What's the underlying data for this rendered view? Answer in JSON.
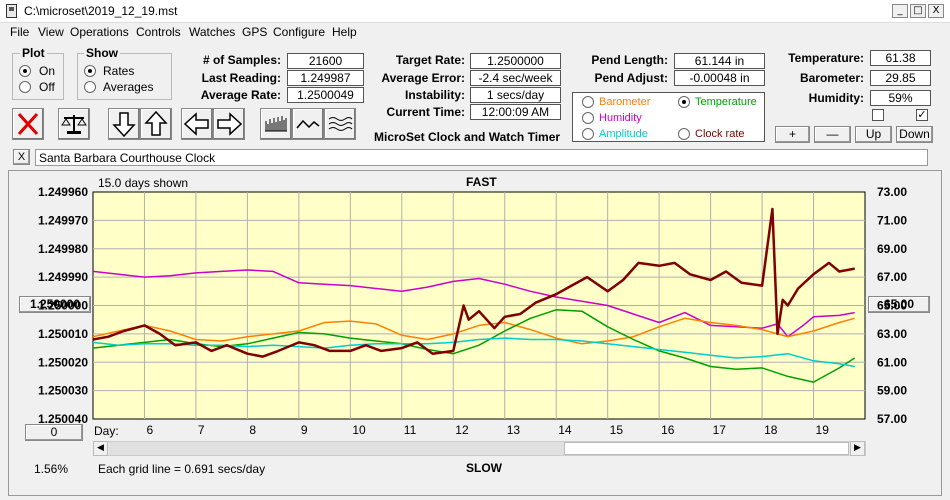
{
  "window": {
    "title": "C:\\microset\\2019_12_19.mst",
    "min": "_",
    "max": "□",
    "close": "X"
  },
  "menu": [
    "File",
    "View",
    "Operations",
    "Controls",
    "Watches",
    "GPS",
    "Configure",
    "Help"
  ],
  "plot_group": {
    "label": "Plot",
    "options": [
      "On",
      "Off"
    ],
    "selected": 0
  },
  "show_group": {
    "label": "Show",
    "options": [
      "Rates",
      "Averages"
    ],
    "selected": 0
  },
  "stats": {
    "samples_label": "# of Samples:",
    "samples": "21600",
    "last_reading_label": "Last Reading:",
    "last_reading": "1.249987",
    "average_rate_label": "Average Rate:",
    "average_rate": "1.2500049"
  },
  "target": {
    "target_rate_label": "Target Rate:",
    "target_rate": "1.2500000",
    "average_error_label": "Average Error:",
    "average_error": "-2.4 sec/week",
    "instability_label": "Instability:",
    "instability": "1 secs/day",
    "current_time_label": "Current Time:",
    "current_time": "12:00:09 AM",
    "app_name": "MicroSet Clock and Watch Timer"
  },
  "pend": {
    "length_label": "Pend Length:",
    "length": "61.144 in",
    "adjust_label": "Pend Adjust:",
    "adjust": "-0.00048 in"
  },
  "environment": {
    "temperature_label": "Temperature:",
    "temperature": "61.38",
    "barometer_label": "Barometer:",
    "barometer": "29.85",
    "humidity_label": "Humidity:",
    "humidity": "59%",
    "checkbox1_checked": false,
    "checkbox2_checked": true,
    "checkbox2_mark": "✓"
  },
  "legend": {
    "items": [
      {
        "label": "Barometer",
        "color": "#ff8000",
        "selected": false
      },
      {
        "label": "Temperature",
        "color": "#00a000",
        "selected": true
      },
      {
        "label": "Humidity",
        "color": "#cc00cc",
        "selected": false
      },
      {
        "label": "Amplitude",
        "color": "#00cccc",
        "selected": false
      },
      {
        "label": "Clock rate",
        "color": "#800000",
        "selected": false
      }
    ]
  },
  "scale_buttons": {
    "plus": "+",
    "minus": "—",
    "up": "Up",
    "down": "Down"
  },
  "toolbar": {
    "close_x": "X"
  },
  "description": "Santa Barbara Courthouse Clock",
  "chart_data": {
    "type": "line",
    "days_shown": "15.0 days shown",
    "top_label": "FAST",
    "bottom_label": "SLOW",
    "grid_note": "Each grid line = 0.691 secs/day",
    "percent": "1.56%",
    "left_button": "1.250000",
    "right_button": "65.00",
    "zero_button": "0",
    "x_label": "Day:",
    "x_ticks": [
      6,
      7,
      8,
      9,
      10,
      11,
      12,
      13,
      14,
      15,
      16,
      17,
      18,
      19
    ],
    "x_tick_labels": [
      "6",
      "7",
      "8",
      "9",
      "10",
      "11",
      "12",
      "13",
      "14",
      "15",
      "16",
      "17",
      "18",
      "19"
    ],
    "xlim": [
      5,
      20
    ],
    "left_ticks": [
      "1.249960",
      "1.249970",
      "1.249980",
      "1.249990",
      "1.250000",
      "1.250010",
      "1.250020",
      "1.250030",
      "1.250040"
    ],
    "left_ylim": [
      1.24996,
      1.25004
    ],
    "right_ticks": [
      "73.00",
      "71.00",
      "69.00",
      "67.00",
      "65.00",
      "63.00",
      "61.00",
      "59.00",
      "57.00"
    ],
    "right_ylim": [
      57,
      73
    ],
    "series": [
      {
        "name": "Humidity",
        "color": "#cc00cc",
        "axis": "right",
        "x": [
          5,
          5.5,
          6,
          6.5,
          7,
          7.5,
          8,
          8.5,
          9,
          9.5,
          10,
          10.5,
          11,
          11.5,
          12,
          12.5,
          13,
          13.5,
          14,
          14.5,
          15,
          15.5,
          16,
          16.5,
          17,
          17.5,
          18,
          18.3,
          18.5,
          18.8,
          19,
          19.5,
          19.8
        ],
        "y": [
          67.4,
          67.2,
          67.0,
          67.1,
          67.3,
          67.4,
          67.5,
          67.4,
          66.6,
          66.5,
          66.4,
          66.2,
          66.0,
          66.3,
          66.7,
          66.9,
          66.5,
          66.0,
          65.6,
          65.3,
          65.0,
          64.4,
          63.8,
          64.5,
          63.6,
          63.5,
          63.4,
          63.7,
          62.8,
          63.6,
          64.2,
          64.3,
          64.5
        ]
      },
      {
        "name": "Barometer",
        "color": "#ff8000",
        "axis": "right",
        "x": [
          5,
          5.5,
          6,
          6.5,
          7,
          7.5,
          8,
          8.5,
          9,
          9.5,
          10,
          10.5,
          11,
          11.5,
          12,
          12.5,
          13,
          13.5,
          14,
          14.5,
          15,
          15.5,
          16,
          16.5,
          17,
          17.5,
          18,
          18.5,
          19,
          19.5,
          19.8
        ],
        "y": [
          62.8,
          63.2,
          63.6,
          63.2,
          62.6,
          62.5,
          62.8,
          63.0,
          63.2,
          63.8,
          63.9,
          63.7,
          62.9,
          62.6,
          63.0,
          63.6,
          63.8,
          63.3,
          62.7,
          62.3,
          62.5,
          62.8,
          63.5,
          64.1,
          63.8,
          63.6,
          63.3,
          62.8,
          63.2,
          63.8,
          64.1
        ]
      },
      {
        "name": "Temperature",
        "color": "#00a000",
        "axis": "right",
        "x": [
          5,
          5.5,
          6,
          6.5,
          7,
          7.5,
          8,
          8.5,
          9,
          9.5,
          10,
          10.5,
          11,
          11.5,
          12,
          12.5,
          13,
          13.5,
          14,
          14.5,
          15,
          15.5,
          16,
          16.5,
          17,
          17.5,
          18,
          18.5,
          19,
          19.5,
          19.8
        ],
        "y": [
          62.0,
          62.2,
          62.4,
          62.6,
          62.3,
          62.1,
          62.3,
          62.7,
          63.1,
          63.0,
          62.7,
          62.5,
          62.3,
          61.9,
          61.6,
          62.2,
          63.2,
          64.1,
          64.7,
          64.6,
          63.5,
          62.6,
          61.8,
          61.3,
          60.7,
          60.5,
          60.6,
          60.0,
          59.6,
          60.6,
          61.3
        ]
      },
      {
        "name": "Amplitude",
        "color": "#00cccc",
        "axis": "right",
        "x": [
          5,
          5.5,
          6,
          6.5,
          7,
          7.5,
          8,
          8.5,
          9,
          9.5,
          10,
          10.5,
          11,
          11.5,
          12,
          12.5,
          13,
          13.5,
          14,
          14.5,
          15,
          15.5,
          16,
          16.5,
          17,
          17.5,
          18,
          18.5,
          19,
          19.5,
          19.8
        ],
        "y": [
          62.4,
          62.2,
          62.3,
          62.3,
          62.2,
          62.2,
          62.1,
          62.2,
          62.1,
          62.0,
          62.2,
          62.3,
          62.3,
          62.3,
          62.4,
          62.6,
          62.7,
          62.6,
          62.6,
          62.5,
          62.3,
          62.1,
          61.9,
          61.7,
          61.5,
          61.3,
          61.4,
          61.6,
          61.1,
          60.9,
          60.7
        ]
      },
      {
        "name": "Clock rate",
        "color": "#800000",
        "axis": "left",
        "x": [
          5,
          5.3,
          5.6,
          6,
          6.3,
          6.6,
          7,
          7.3,
          7.6,
          8,
          8.3,
          8.6,
          9,
          9.3,
          9.6,
          10,
          10.3,
          10.6,
          11,
          11.3,
          11.6,
          12,
          12.2,
          12.3,
          12.5,
          12.8,
          13,
          13.3,
          13.6,
          14,
          14.3,
          14.6,
          15,
          15.3,
          15.6,
          16,
          16.3,
          16.6,
          17,
          17.3,
          17.6,
          18,
          18.2,
          18.3,
          18.4,
          18.5,
          18.7,
          19,
          19.3,
          19.5,
          19.8
        ],
        "y": [
          1.250012,
          1.250011,
          1.250009,
          1.250007,
          1.25001,
          1.250014,
          1.250013,
          1.250016,
          1.250014,
          1.250017,
          1.250018,
          1.250016,
          1.250013,
          1.250014,
          1.250016,
          1.250016,
          1.250014,
          1.250016,
          1.250015,
          1.250013,
          1.250017,
          1.250016,
          1.25,
          1.250005,
          1.250002,
          1.250008,
          1.250004,
          1.250003,
          1.249999,
          1.249996,
          1.249993,
          1.24999,
          1.249995,
          1.249991,
          1.249985,
          1.249986,
          1.249985,
          1.249989,
          1.249991,
          1.249988,
          1.249992,
          1.249993,
          1.249966,
          1.25001,
          1.249998,
          1.25,
          1.249994,
          1.249989,
          1.249985,
          1.249988,
          1.249987
        ]
      }
    ]
  }
}
